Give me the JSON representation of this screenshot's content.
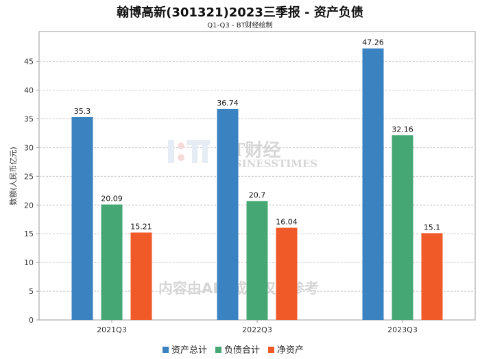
{
  "chart_data": {
    "type": "bar",
    "title": "翰博高新(301321)2023三季报 - 资产负债",
    "subtitle": "Q1-Q3 - BT财经绘制",
    "xlabel": "",
    "ylabel": "数额(人民币亿元)",
    "categories": [
      "2021Q3",
      "2022Q3",
      "2023Q3"
    ],
    "series": [
      {
        "name": "资产总计",
        "color": "#3a82c0",
        "values": [
          35.3,
          36.74,
          47.26
        ]
      },
      {
        "name": "负债合计",
        "color": "#45a874",
        "values": [
          20.09,
          20.7,
          32.16
        ]
      },
      {
        "name": "净资产",
        "color": "#f05a28",
        "values": [
          15.21,
          16.04,
          15.1
        ]
      }
    ],
    "ylim": [
      0,
      50.2
    ],
    "yticks": [
      0,
      5,
      10,
      15,
      20,
      25,
      30,
      35,
      40,
      45
    ],
    "grid": true,
    "legend_position": "bottom-center"
  },
  "watermark": {
    "brand": "BT财经",
    "brand_en": "BUSINESSTIMES",
    "notice": "内容由AI生成，仅供参考"
  }
}
